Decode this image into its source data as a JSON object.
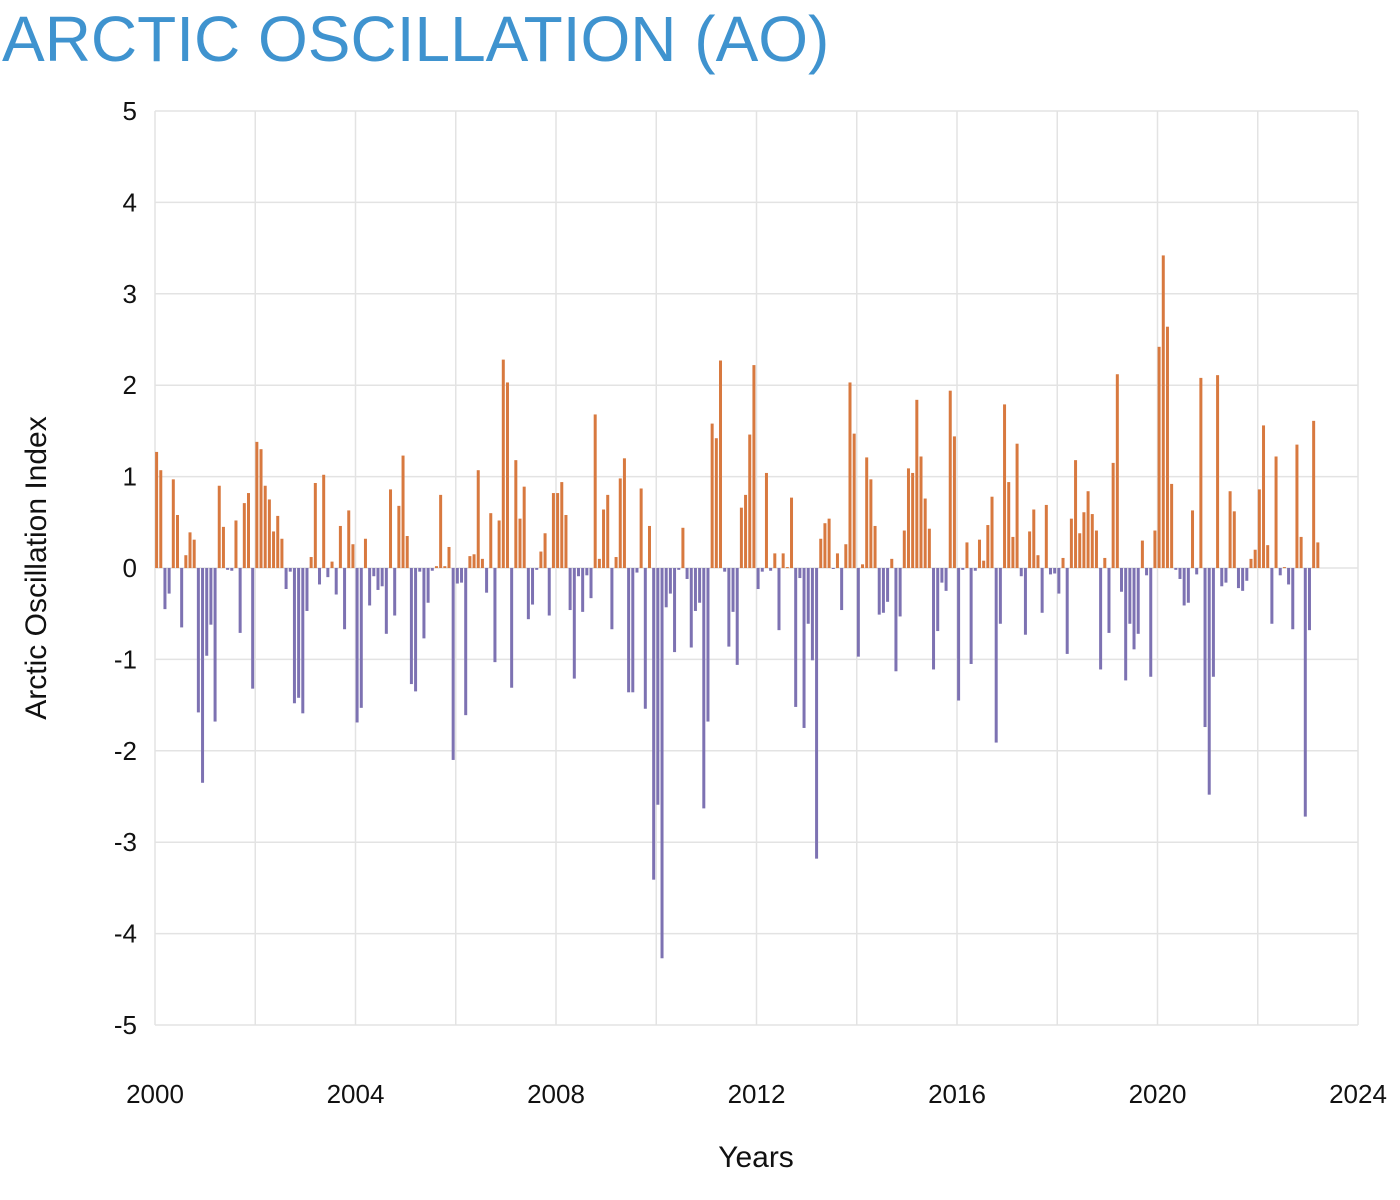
{
  "title": "ARCTIC OSCILLATION (AO)",
  "chart_data": {
    "type": "bar",
    "title": "ARCTIC OSCILLATION (AO)",
    "xlabel": "Years",
    "ylabel": "Arctic Oscillation Index",
    "xlim": [
      2000,
      2024
    ],
    "ylim": [
      -5,
      5
    ],
    "x_ticks": [
      "2000",
      "2004",
      "2008",
      "2012",
      "2016",
      "2020",
      "2024"
    ],
    "y_ticks": [
      "5",
      "4",
      "3",
      "2",
      "1",
      "0",
      "-1",
      "-2",
      "-3",
      "-4",
      "-5"
    ],
    "grid": true,
    "frequency": "monthly",
    "start": "2000-01",
    "colors": {
      "positive": "#d8793f",
      "negative": "#7d72b2",
      "title": "#3f93cf",
      "grid": "#e3e3e3"
    },
    "values": [
      1.27,
      1.07,
      -0.45,
      -0.28,
      0.97,
      0.58,
      -0.65,
      0.14,
      0.39,
      0.31,
      -1.58,
      -2.35,
      -0.96,
      -0.62,
      -1.68,
      0.9,
      0.45,
      -0.02,
      -0.03,
      0.52,
      -0.71,
      0.71,
      0.82,
      -1.32,
      1.38,
      1.3,
      0.9,
      0.75,
      0.4,
      0.57,
      0.32,
      -0.23,
      -0.04,
      -1.48,
      -1.42,
      -1.59,
      -0.47,
      0.12,
      0.93,
      -0.18,
      1.02,
      -0.1,
      0.07,
      -0.29,
      0.46,
      -0.67,
      0.63,
      0.26,
      -1.69,
      -1.53,
      0.32,
      -0.41,
      -0.09,
      -0.24,
      -0.2,
      -0.72,
      0.86,
      -0.52,
      0.68,
      1.23,
      0.35,
      -1.27,
      -1.35,
      -0.04,
      -0.77,
      -0.38,
      -0.03,
      0.02,
      0.8,
      0.02,
      0.23,
      -2.1,
      -0.17,
      -0.16,
      -1.61,
      0.13,
      0.15,
      1.07,
      0.1,
      -0.27,
      0.6,
      -1.03,
      0.52,
      2.28,
      2.03,
      -1.31,
      1.18,
      0.54,
      0.89,
      -0.56,
      -0.4,
      -0.02,
      0.18,
      0.38,
      -0.52,
      0.82,
      0.82,
      0.94,
      0.58,
      -0.46,
      -1.21,
      -0.09,
      -0.48,
      -0.08,
      -0.33,
      1.68,
      0.1,
      0.64,
      0.8,
      -0.67,
      0.12,
      0.98,
      1.2,
      -1.36,
      -1.36,
      -0.05,
      0.87,
      -1.54,
      0.46,
      -3.41,
      -2.59,
      -4.27,
      -0.43,
      -0.28,
      -0.92,
      -0.02,
      0.44,
      -0.12,
      -0.87,
      -0.47,
      -0.38,
      -2.63,
      -1.68,
      1.58,
      1.42,
      2.27,
      -0.04,
      -0.86,
      -0.48,
      -1.06,
      0.66,
      0.8,
      1.46,
      2.22,
      -0.23,
      -0.04,
      1.04,
      -0.03,
      0.16,
      -0.68,
      0.16,
      0.01,
      0.77,
      -1.52,
      -0.11,
      -1.75,
      -0.61,
      -1.01,
      -3.18,
      0.32,
      0.49,
      0.54,
      -0.01,
      0.16,
      -0.46,
      0.26,
      2.03,
      1.47,
      -0.97,
      0.04,
      1.21,
      0.97,
      0.46,
      -0.51,
      -0.49,
      -0.37,
      0.1,
      -1.13,
      -0.53,
      0.41,
      1.09,
      1.04,
      1.84,
      1.22,
      0.76,
      0.43,
      -1.11,
      -0.69,
      -0.16,
      -0.25,
      1.94,
      1.44,
      -1.45,
      -0.02,
      0.28,
      -1.05,
      -0.03,
      0.31,
      0.08,
      0.47,
      0.78,
      -1.91,
      -0.61,
      1.79,
      0.94,
      0.34,
      1.36,
      -0.09,
      -0.73,
      0.4,
      0.64,
      0.14,
      -0.49,
      0.69,
      -0.07,
      -0.06,
      -0.28,
      0.11,
      -0.94,
      0.54,
      1.18,
      0.38,
      0.61,
      0.84,
      0.59,
      0.41,
      -1.11,
      0.11,
      -0.71,
      1.15,
      2.12,
      -0.26,
      -1.23,
      -0.61,
      -0.89,
      -0.72,
      0.3,
      -0.08,
      -1.19,
      0.41,
      2.42,
      3.42,
      2.64,
      0.92,
      -0.02,
      -0.12,
      -0.41,
      -0.38,
      0.63,
      -0.07,
      2.08,
      -1.74,
      -2.48,
      -1.19,
      2.11,
      -0.2,
      -0.16,
      0.84,
      0.62,
      -0.22,
      -0.25,
      -0.14,
      0.1,
      0.2,
      0.86,
      1.56,
      0.25,
      -0.61,
      1.22,
      -0.08,
      0.01,
      -0.18,
      -0.67,
      1.35,
      0.34,
      -2.72,
      -0.68,
      1.61,
      0.28
    ]
  }
}
